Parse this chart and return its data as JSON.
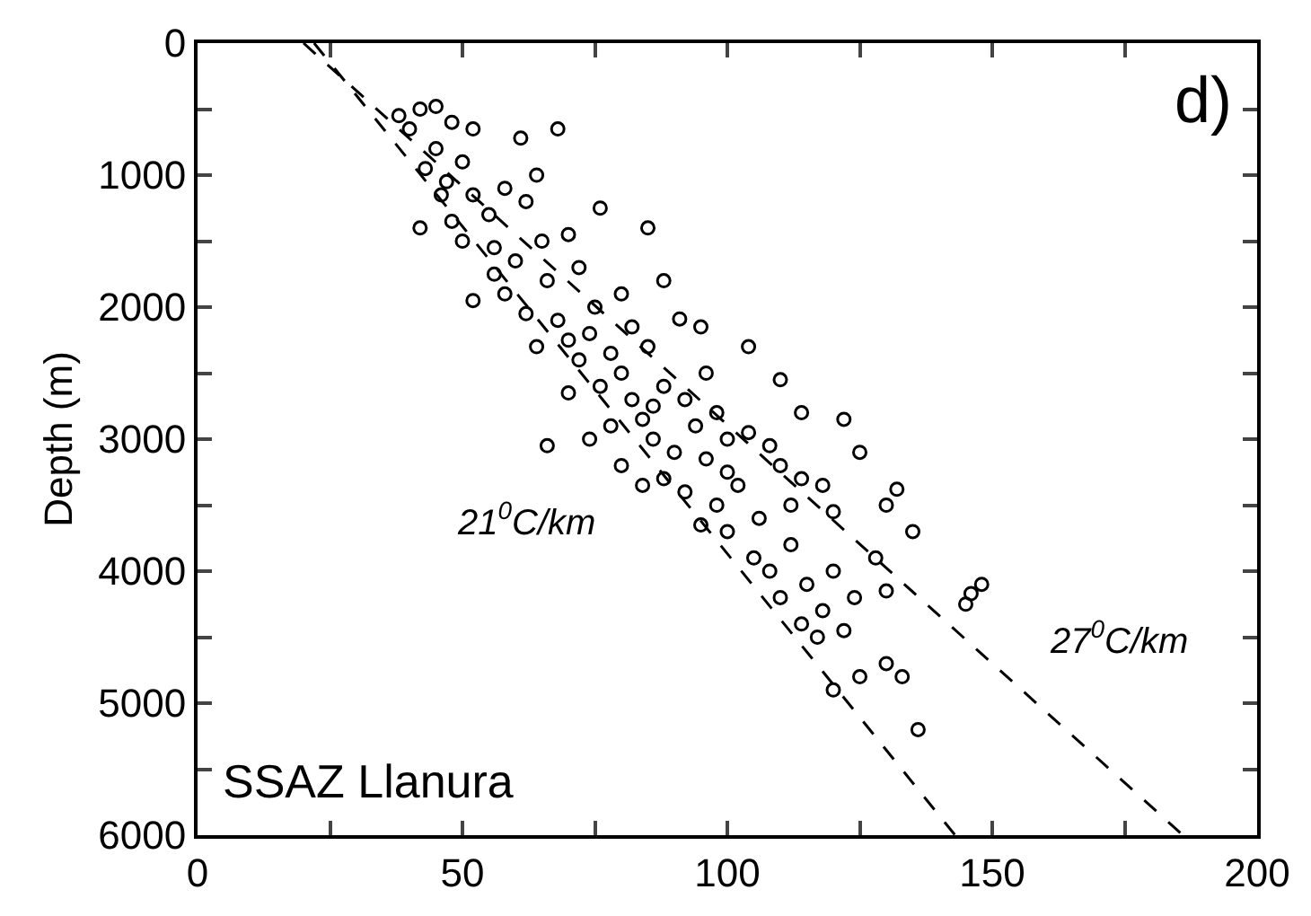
{
  "chart_data": {
    "type": "scatter",
    "ylabel": "Depth (m)",
    "xlim": [
      0,
      200
    ],
    "xticks": [
      0,
      {
        "value": 25,
        "label": null
      },
      50,
      {
        "value": 75,
        "label": null
      },
      100,
      {
        "value": 125,
        "label": null
      },
      150,
      {
        "value": 175,
        "label": null
      },
      200
    ],
    "ylim": [
      6000,
      0
    ],
    "yticks": [
      0,
      {
        "value": 500,
        "label": null
      },
      1000,
      {
        "value": 1500,
        "label": null
      },
      2000,
      {
        "value": 2500,
        "label": null
      },
      3000,
      {
        "value": 3500,
        "label": null
      },
      4000,
      {
        "value": 4500,
        "label": null
      },
      5000,
      {
        "value": 5500,
        "label": null
      },
      6000
    ],
    "marker": "circle",
    "annotations": [
      "21$^{0}$C/km",
      "27$^{0}$C/km",
      "SSAZ Llanura",
      "d)"
    ],
    "series": [
      {
        "color": "#000000",
        "x": [
          38,
          42,
          45,
          48,
          52,
          61,
          68,
          45,
          50,
          43,
          47,
          52,
          58,
          62,
          55,
          48,
          42,
          50,
          56,
          60,
          65,
          70,
          72,
          66,
          58,
          52,
          62,
          68,
          75,
          80,
          82,
          70,
          64,
          72,
          78,
          85,
          91,
          96,
          76,
          82,
          70,
          66,
          88,
          92,
          98,
          84,
          78,
          74,
          86,
          90,
          96,
          100,
          104,
          108,
          88,
          92,
          98,
          80,
          84,
          102,
          110,
          114,
          118,
          95,
          100,
          106,
          112,
          120,
          132,
          135,
          128,
          146,
          148,
          145,
          105,
          112,
          108,
          115,
          110,
          118,
          122,
          114,
          124,
          120,
          130,
          125,
          120,
          133,
          130,
          136,
          117,
          100,
          94,
          86,
          80,
          74,
          56,
          46,
          40,
          64,
          76,
          85,
          88,
          95,
          104,
          110,
          114,
          122,
          125,
          130
        ],
        "values": [
          550,
          500,
          480,
          600,
          650,
          720,
          650,
          800,
          900,
          950,
          1050,
          1150,
          1100,
          1200,
          1300,
          1350,
          1400,
          1500,
          1550,
          1650,
          1500,
          1450,
          1700,
          1800,
          1900,
          1950,
          2050,
          2100,
          2000,
          1900,
          2150,
          2250,
          2300,
          2400,
          2350,
          2300,
          2090,
          2500,
          2600,
          2700,
          2650,
          3050,
          2600,
          2700,
          2800,
          2850,
          2900,
          3000,
          3000,
          3100,
          3150,
          3000,
          2950,
          3050,
          3300,
          3400,
          3500,
          3200,
          3350,
          3350,
          3200,
          3300,
          3350,
          3650,
          3700,
          3600,
          3500,
          3550,
          3380,
          3700,
          3900,
          4170,
          4100,
          4250,
          3900,
          3800,
          4000,
          4100,
          4200,
          4300,
          4450,
          4400,
          4200,
          4000,
          4150,
          4800,
          4900,
          4800,
          4700,
          5200,
          4500,
          3250,
          2900,
          2750,
          2500,
          2200,
          1750,
          1150,
          650,
          1000,
          1250,
          1400,
          1800,
          2150,
          2300,
          2550,
          2800,
          2850,
          3100,
          3500
        ]
      },
      {
        "type": "line",
        "marker": "none",
        "color": "#000000",
        "line_style": "dashed",
        "x": [
          22,
          143
        ],
        "values": [
          0,
          6000
        ]
      },
      {
        "type": "line",
        "marker": "none",
        "color": "#000000",
        "line_style": "dashed",
        "x": [
          20,
          186
        ],
        "values": [
          0,
          6000
        ]
      }
    ]
  }
}
